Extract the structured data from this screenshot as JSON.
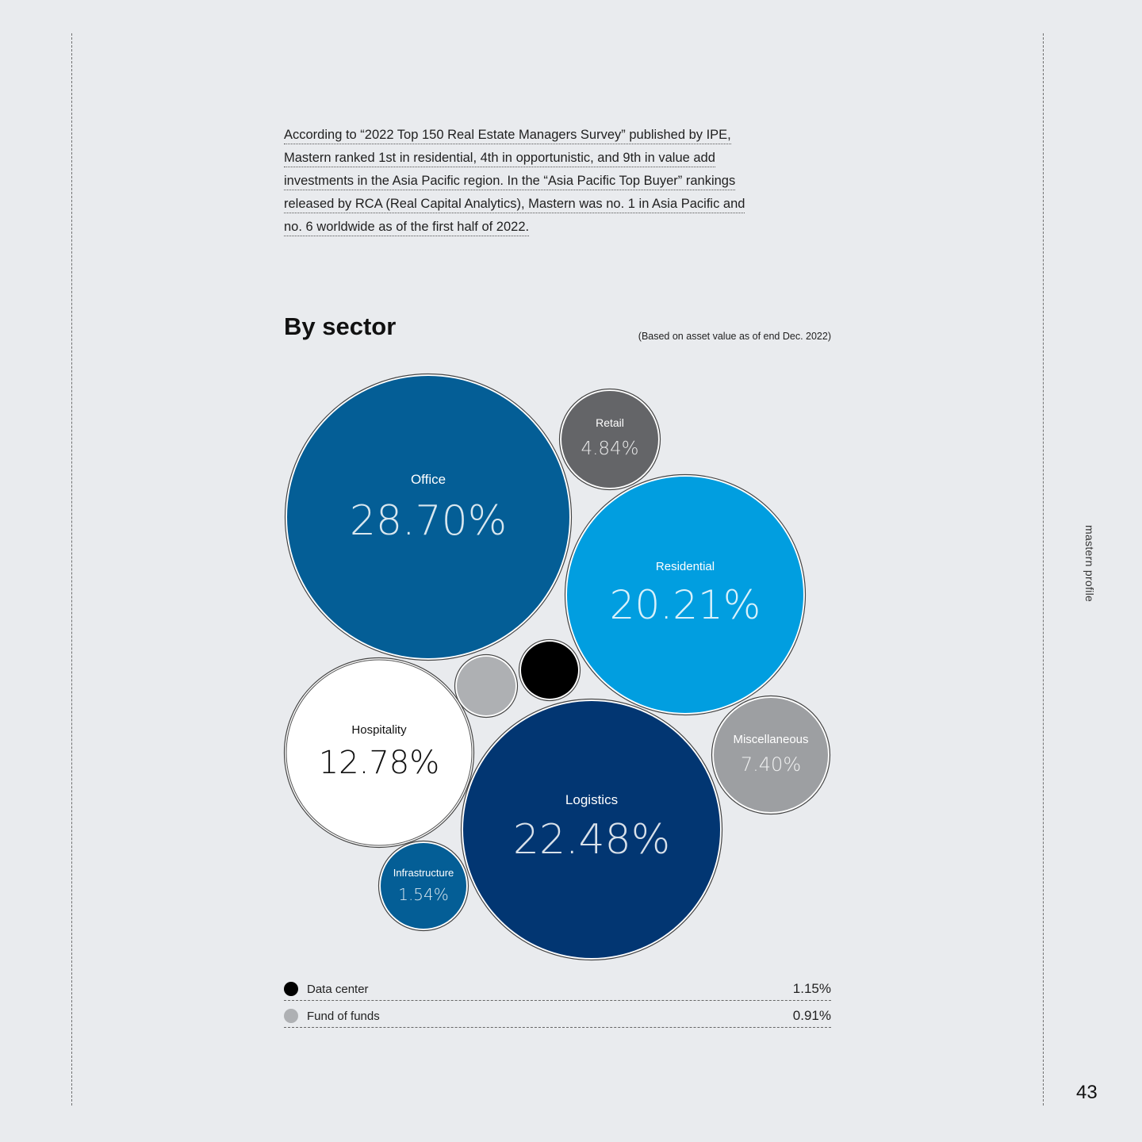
{
  "intro": {
    "lines": [
      "According to “2022 Top 150 Real Estate Managers Survey” published by IPE,",
      "Mastern ranked 1st in residential, 4th in opportunistic, and 9th in value add",
      "investments in the Asia Pacific region. In the “Asia Pacific Top Buyer” rankings",
      "released by RCA (Real Capital Analytics), Mastern was no. 1 in Asia Pacific and",
      "no. 6 worldwide as of the first half of 2022."
    ]
  },
  "side_label": "mastern profile",
  "page_number": "43",
  "chart_data": {
    "type": "bubble",
    "title": "By sector",
    "subtitle": "(Based on asset value as of end Dec. 2022)",
    "series": [
      {
        "name": "Office",
        "value": 28.7,
        "label": "28.70%",
        "color": "#045e96",
        "text_color": "#ffffff"
      },
      {
        "name": "Logistics",
        "value": 22.48,
        "label": "22.48%",
        "color": "#023672",
        "text_color": "#ffffff"
      },
      {
        "name": "Residential",
        "value": 20.21,
        "label": "20.21%",
        "color": "#019ee0",
        "text_color": "#ffffff"
      },
      {
        "name": "Hospitality",
        "value": 12.78,
        "label": "12.78%",
        "color": "#ffffff",
        "text_color": "#111111"
      },
      {
        "name": "Miscellaneous",
        "value": 7.4,
        "label": "7.40%",
        "color": "#9d9fa2",
        "text_color": "#ffffff"
      },
      {
        "name": "Retail",
        "value": 4.84,
        "label": "4.84%",
        "color": "#646568",
        "text_color": "#ffffff"
      },
      {
        "name": "Infrastructure",
        "value": 1.54,
        "label": "1.54%",
        "color": "#045e96",
        "text_color": "#ffffff"
      },
      {
        "name": "Data center",
        "value": 1.15,
        "label": "1.15%",
        "color": "#000000",
        "text_color": "#ffffff"
      },
      {
        "name": "Fund of funds",
        "value": 0.91,
        "label": "0.91%",
        "color": "#aeb0b3",
        "text_color": "#ffffff"
      }
    ],
    "legend": [
      {
        "name": "Data center",
        "label": "1.15%",
        "color": "#000000"
      },
      {
        "name": "Fund of funds",
        "label": "0.91%",
        "color": "#aeb0b3"
      }
    ]
  }
}
